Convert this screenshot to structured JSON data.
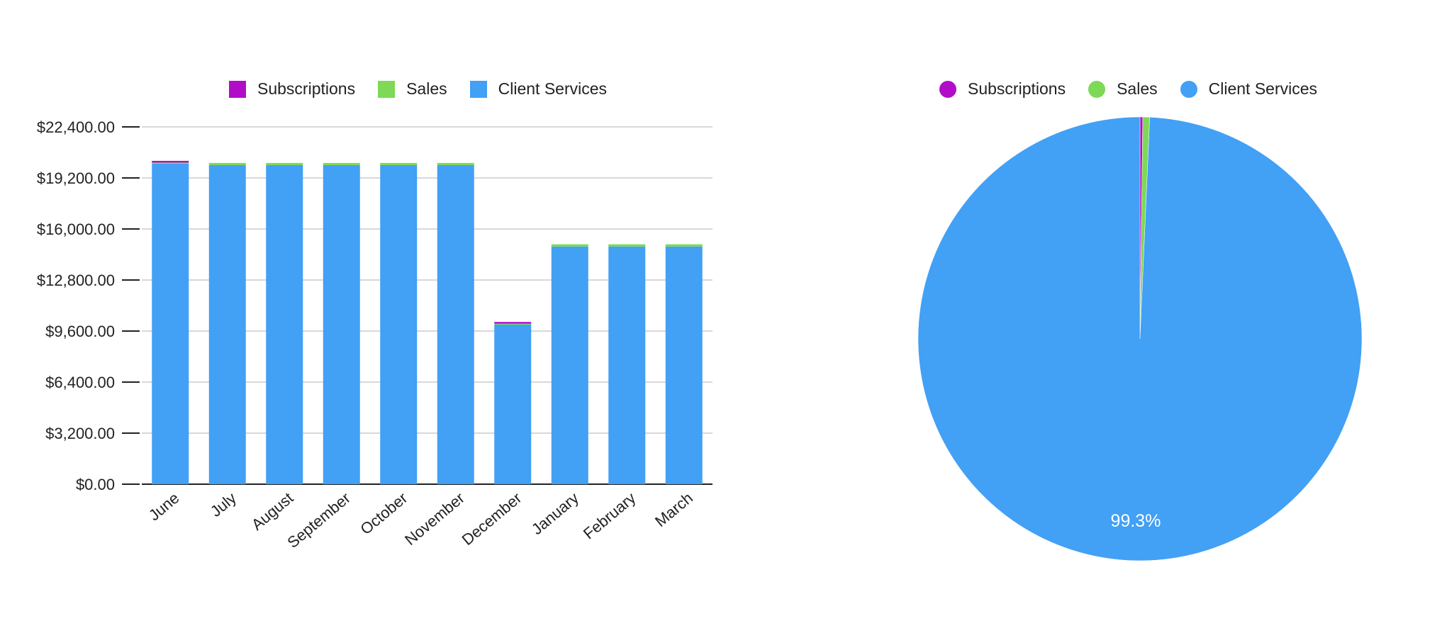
{
  "chart_data": [
    {
      "type": "bar",
      "stacked": true,
      "categories": [
        "June",
        "July",
        "August",
        "September",
        "October",
        "November",
        "December",
        "January",
        "February",
        "March"
      ],
      "series": [
        {
          "name": "Client Services",
          "color": "#42a0f5",
          "values": [
            20100,
            20000,
            20000,
            20000,
            20000,
            20000,
            10000,
            14900,
            14900,
            14900
          ]
        },
        {
          "name": "Sales",
          "color": "#7ed957",
          "values": [
            60,
            140,
            140,
            140,
            140,
            140,
            60,
            140,
            140,
            140
          ]
        },
        {
          "name": "Subscriptions",
          "color": "#b10dc9",
          "values": [
            110,
            0,
            0,
            0,
            0,
            0,
            110,
            0,
            0,
            0
          ]
        }
      ],
      "legend": [
        "Subscriptions",
        "Sales",
        "Client Services"
      ],
      "legend_position": "top",
      "y_ticks": [
        "$0.00",
        "$3,200.00",
        "$6,400.00",
        "$9,600.00",
        "$12,800.00",
        "$16,000.00",
        "$19,200.00",
        "$22,400.00"
      ],
      "ylim": [
        0,
        22400
      ],
      "grid": true,
      "title": "",
      "xlabel": "",
      "ylabel": ""
    },
    {
      "type": "pie",
      "slices": [
        {
          "name": "Subscriptions",
          "color": "#b10dc9",
          "value": 0.2
        },
        {
          "name": "Sales",
          "color": "#7ed957",
          "value": 0.5
        },
        {
          "name": "Client Services",
          "color": "#42a0f5",
          "value": 99.3
        }
      ],
      "legend": [
        "Subscriptions",
        "Sales",
        "Client Services"
      ],
      "legend_position": "top",
      "slice_label": "99.3%"
    }
  ]
}
